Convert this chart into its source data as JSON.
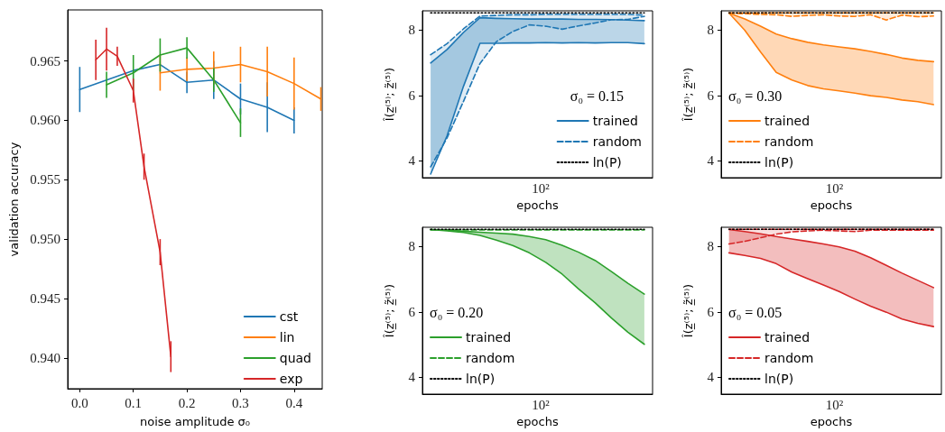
{
  "chart_data": [
    {
      "type": "line",
      "xlabel": "noise amplitude σ₀",
      "ylabel": "validation accuracy",
      "xlim": [
        -0.0225,
        0.4525
      ],
      "ylim": [
        0.9374,
        0.9693
      ],
      "xticks": [
        {
          "value": 0,
          "label": "0.0"
        },
        {
          "value": 0.1,
          "label": "0.1"
        },
        {
          "value": 0.2,
          "label": "0.2"
        },
        {
          "value": 0.3,
          "label": "0.3"
        },
        {
          "value": 0.4,
          "label": "0.4"
        }
      ],
      "yticks": [
        {
          "value": 0.94,
          "label": "0.940"
        },
        {
          "value": 0.945,
          "label": "0.945"
        },
        {
          "value": 0.95,
          "label": "0.950"
        },
        {
          "value": 0.955,
          "label": "0.955"
        },
        {
          "value": 0.96,
          "label": "0.960"
        },
        {
          "value": 0.965,
          "label": "0.965"
        }
      ],
      "legend": "bottom right",
      "marker": "none",
      "series": [
        {
          "name": "cst",
          "color": "#1f77b4",
          "x": [
            0,
            0.05,
            0.1,
            0.15,
            0.2,
            0.25,
            0.3,
            0.35,
            0.4
          ],
          "values": [
            0.9626,
            0.9634,
            0.9642,
            0.9647,
            0.9632,
            0.9634,
            0.9618,
            0.9611,
            0.96
          ],
          "errors": [
            0.0019,
            null,
            null,
            null,
            0.0009,
            0.0016,
            0.0013,
            0.0021,
            0.0011
          ]
        },
        {
          "name": "lin",
          "color": "#ff7f0e",
          "x": [
            0.15,
            0.2,
            0.25,
            0.3,
            0.35,
            0.4,
            0.45
          ],
          "values": [
            0.964,
            0.9643,
            0.9644,
            0.9647,
            0.9641,
            0.9631,
            0.9618
          ],
          "errors": [
            0.0015,
            0.001,
            0.0014,
            0.0015,
            0.0021,
            0.0022,
            0.001
          ]
        },
        {
          "name": "quad",
          "color": "#2ca02c",
          "x": [
            0.05,
            0.1,
            0.15,
            0.2,
            0.25,
            0.3
          ],
          "values": [
            0.963,
            0.964,
            0.9655,
            0.9661,
            0.9634,
            0.9598
          ],
          "errors": [
            0.0011,
            0.0015,
            0.0014,
            0.0009,
            0.001,
            0.0012
          ]
        },
        {
          "name": "exp",
          "color": "#d62728",
          "x": [
            0.03,
            0.05,
            0.07,
            0.1,
            0.12,
            0.15,
            0.17
          ],
          "values": [
            0.9651,
            0.966,
            0.9654,
            0.9625,
            0.9561,
            0.9489,
            0.9401
          ],
          "errors": [
            0.0017,
            0.0018,
            0.0008,
            0.001,
            0.0011,
            0.0011,
            0.0013
          ]
        }
      ]
    },
    {
      "type": "line",
      "xlabel": "epochs",
      "ylabel": "Î(z̲⁽⁵⁾; z̲̃⁽⁵⁾)",
      "legend": "bottom right",
      "legend_title": "σ₀ = 0.15",
      "marker": "none",
      "ylim": [
        3.49,
        8.58
      ],
      "yticks": [
        4,
        6,
        8
      ],
      "annotations": [
        "10²"
      ],
      "categories": [
        null,
        null,
        null,
        null,
        null,
        null,
        null,
        null,
        null,
        null,
        null,
        null,
        null,
        null
      ],
      "series": [
        {
          "name": "trained",
          "color": "#1f77b4",
          "line_style": "solid",
          "values": [
            6.99,
            7.4,
            7.92,
            8.37,
            8.35,
            8.34,
            8.33,
            8.33,
            8.33,
            8.32,
            8.32,
            8.31,
            8.3,
            8.28
          ],
          "upper": [
            6.99,
            7.4,
            7.92,
            8.37,
            8.35,
            8.34,
            8.33,
            8.33,
            8.33,
            8.32,
            8.32,
            8.31,
            8.3,
            8.28
          ],
          "lower": [
            3.6,
            4.77,
            6.28,
            7.59,
            7.59,
            7.6,
            7.6,
            7.61,
            7.6,
            7.61,
            7.6,
            7.61,
            7.61,
            7.58
          ]
        },
        {
          "color": "#1f77b4",
          "line_style": "solid",
          "values": [
            3.6,
            4.77,
            6.28,
            7.59,
            7.59,
            7.6,
            7.6,
            7.61,
            7.6,
            7.61,
            7.6,
            7.61,
            7.61,
            7.58
          ]
        },
        {
          "name": "random",
          "color": "#1f77b4",
          "line_style": "dashed",
          "values": [
            7.24,
            7.58,
            8.03,
            8.42,
            8.44,
            8.46,
            8.46,
            8.47,
            8.47,
            8.47,
            8.47,
            8.47,
            8.47,
            8.45
          ],
          "upper": [
            7.24,
            7.58,
            8.03,
            8.42,
            8.44,
            8.46,
            8.46,
            8.47,
            8.47,
            8.47,
            8.47,
            8.47,
            8.47,
            8.45
          ],
          "lower": [
            3.82,
            4.7,
            5.82,
            6.97,
            7.64,
            7.95,
            8.15,
            8.11,
            8.02,
            8.12,
            8.21,
            8.31,
            8.32,
            8.41
          ]
        },
        {
          "color": "#1f77b4",
          "line_style": "dashed",
          "values": [
            3.82,
            4.7,
            5.82,
            6.97,
            7.64,
            7.95,
            8.15,
            8.11,
            8.02,
            8.12,
            8.21,
            8.31,
            8.32,
            8.41
          ]
        }
      ],
      "ref_lines": [
        {
          "axis": "y",
          "value": 8.52,
          "label": "ln(P)",
          "color": "#000000",
          "line_style": "dotted"
        }
      ]
    },
    {
      "type": "line",
      "xlabel": "epochs",
      "ylabel": "Î(z̲⁽⁵⁾; z̲̃⁽⁵⁾)",
      "legend": "bottom left",
      "legend_title": "σ₀ = 0.30",
      "marker": "none",
      "ylim": [
        3.49,
        8.58
      ],
      "yticks": [
        4,
        6,
        8
      ],
      "annotations": [
        "10²"
      ],
      "categories": [
        null,
        null,
        null,
        null,
        null,
        null,
        null,
        null,
        null,
        null,
        null,
        null,
        null,
        null
      ],
      "series": [
        {
          "name": "trained",
          "color": "#ff7f0e",
          "line_style": "solid",
          "values": [
            8.51,
            8.33,
            8.11,
            7.87,
            7.73,
            7.62,
            7.54,
            7.48,
            7.42,
            7.34,
            7.25,
            7.14,
            7.07,
            7.03
          ],
          "upper": [
            8.51,
            8.33,
            8.11,
            7.87,
            7.73,
            7.62,
            7.54,
            7.48,
            7.42,
            7.34,
            7.25,
            7.14,
            7.07,
            7.03
          ],
          "lower": [
            8.51,
            7.99,
            7.33,
            6.7,
            6.47,
            6.3,
            6.2,
            6.14,
            6.07,
            5.99,
            5.94,
            5.86,
            5.81,
            5.72
          ]
        },
        {
          "color": "#ff7f0e",
          "line_style": "solid",
          "values": [
            8.51,
            7.99,
            7.33,
            6.7,
            6.47,
            6.3,
            6.2,
            6.14,
            6.07,
            5.99,
            5.94,
            5.86,
            5.81,
            5.72
          ]
        },
        {
          "name": "random",
          "color": "#ff7f0e",
          "line_style": "dashed",
          "values": [
            8.52,
            8.52,
            8.52,
            8.52,
            8.52,
            8.52,
            8.52,
            8.52,
            8.52,
            8.52,
            8.52,
            8.52,
            8.52,
            8.52
          ],
          "upper": [
            8.52,
            8.52,
            8.52,
            8.52,
            8.52,
            8.52,
            8.52,
            8.52,
            8.52,
            8.52,
            8.52,
            8.52,
            8.52,
            8.52
          ],
          "lower": [
            8.51,
            8.49,
            8.47,
            8.46,
            8.41,
            8.44,
            8.46,
            8.42,
            8.41,
            8.46,
            8.3,
            8.45,
            8.4,
            8.42
          ]
        },
        {
          "color": "#ff7f0e",
          "line_style": "dashed",
          "values": [
            8.51,
            8.49,
            8.47,
            8.46,
            8.41,
            8.44,
            8.46,
            8.42,
            8.41,
            8.46,
            8.3,
            8.45,
            8.4,
            8.42
          ]
        }
      ],
      "ref_lines": [
        {
          "axis": "y",
          "value": 8.52,
          "label": "ln(P)",
          "color": "#000000",
          "line_style": "dotted"
        }
      ]
    },
    {
      "type": "line",
      "xlabel": "epochs",
      "ylabel": "Î(z̲⁽⁵⁾; z̲̃⁽⁵⁾)",
      "legend": "bottom left",
      "legend_title": "σ₀ = 0.20",
      "marker": "none",
      "ylim": [
        3.49,
        8.58
      ],
      "yticks": [
        4,
        6,
        8
      ],
      "annotations": [
        "10²"
      ],
      "categories": [
        null,
        null,
        null,
        null,
        null,
        null,
        null,
        null,
        null,
        null,
        null,
        null,
        null,
        null
      ],
      "series": [
        {
          "name": "trained",
          "color": "#2ca02c",
          "line_style": "solid",
          "values": [
            8.51,
            8.49,
            8.46,
            8.43,
            8.4,
            8.37,
            8.3,
            8.2,
            8.03,
            7.82,
            7.57,
            7.23,
            6.87,
            6.54
          ],
          "upper": [
            8.51,
            8.49,
            8.46,
            8.43,
            8.4,
            8.37,
            8.3,
            8.2,
            8.03,
            7.82,
            7.57,
            7.23,
            6.87,
            6.54
          ],
          "lower": [
            8.51,
            8.47,
            8.42,
            8.33,
            8.19,
            8.02,
            7.8,
            7.51,
            7.15,
            6.7,
            6.28,
            5.81,
            5.38,
            5.01
          ]
        },
        {
          "color": "#2ca02c",
          "line_style": "solid",
          "values": [
            8.51,
            8.47,
            8.42,
            8.33,
            8.19,
            8.02,
            7.8,
            7.51,
            7.15,
            6.7,
            6.28,
            5.81,
            5.38,
            5.01
          ]
        },
        {
          "name": "random",
          "color": "#2ca02c",
          "line_style": "dashed",
          "values": [
            8.5,
            8.5,
            8.5,
            8.5,
            8.5,
            8.5,
            8.5,
            8.5,
            8.5,
            8.5,
            8.5,
            8.5,
            8.5,
            8.5
          ]
        }
      ],
      "ref_lines": [
        {
          "axis": "y",
          "value": 8.52,
          "label": "ln(P)",
          "color": "#000000",
          "line_style": "dotted"
        }
      ]
    },
    {
      "type": "line",
      "xlabel": "epochs",
      "ylabel": "Î(z̲⁽⁵⁾; z̲̃⁽⁵⁾)",
      "legend": "bottom left",
      "legend_title": "σ₀ = 0.05",
      "marker": "none",
      "ylim": [
        3.49,
        8.58
      ],
      "yticks": [
        4,
        6,
        8
      ],
      "annotations": [
        "10²"
      ],
      "categories": [
        null,
        null,
        null,
        null,
        null,
        null,
        null,
        null,
        null,
        null,
        null,
        null,
        null,
        null
      ],
      "series": [
        {
          "name": "trained",
          "color": "#d62728",
          "line_style": "solid",
          "values": [
            8.51,
            8.45,
            8.38,
            8.3,
            8.22,
            8.15,
            8.07,
            7.98,
            7.85,
            7.65,
            7.42,
            7.18,
            6.96,
            6.74
          ],
          "upper": [
            8.51,
            8.45,
            8.38,
            8.3,
            8.22,
            8.15,
            8.07,
            7.98,
            7.85,
            7.65,
            7.42,
            7.18,
            6.96,
            6.74
          ],
          "lower": [
            7.8,
            7.72,
            7.63,
            7.47,
            7.21,
            7.01,
            6.82,
            6.62,
            6.39,
            6.17,
            5.99,
            5.78,
            5.65,
            5.55
          ]
        },
        {
          "color": "#d62728",
          "line_style": "solid",
          "values": [
            7.8,
            7.72,
            7.63,
            7.47,
            7.21,
            7.01,
            6.82,
            6.62,
            6.39,
            6.17,
            5.99,
            5.78,
            5.65,
            5.55
          ]
        },
        {
          "name": "random",
          "color": "#d62728",
          "line_style": "dashed",
          "values": [
            8.52,
            8.52,
            8.52,
            8.52,
            8.52,
            8.52,
            8.52,
            8.52,
            8.52,
            8.52,
            8.52,
            8.52,
            8.52,
            8.52
          ],
          "upper": [
            8.52,
            8.52,
            8.52,
            8.52,
            8.52,
            8.52,
            8.52,
            8.52,
            8.52,
            8.52,
            8.52,
            8.52,
            8.52,
            8.52
          ],
          "lower": [
            8.07,
            8.15,
            8.26,
            8.37,
            8.44,
            8.47,
            8.49,
            8.47,
            8.45,
            8.49,
            8.49,
            8.49,
            8.49,
            8.49
          ]
        },
        {
          "color": "#d62728",
          "line_style": "dashed",
          "values": [
            8.07,
            8.15,
            8.26,
            8.37,
            8.44,
            8.47,
            8.49,
            8.47,
            8.45,
            8.49,
            8.49,
            8.49,
            8.49,
            8.49
          ]
        }
      ],
      "ref_lines": [
        {
          "axis": "y",
          "value": 8.52,
          "label": "ln(P)",
          "color": "#000000",
          "line_style": "dotted"
        }
      ]
    }
  ]
}
